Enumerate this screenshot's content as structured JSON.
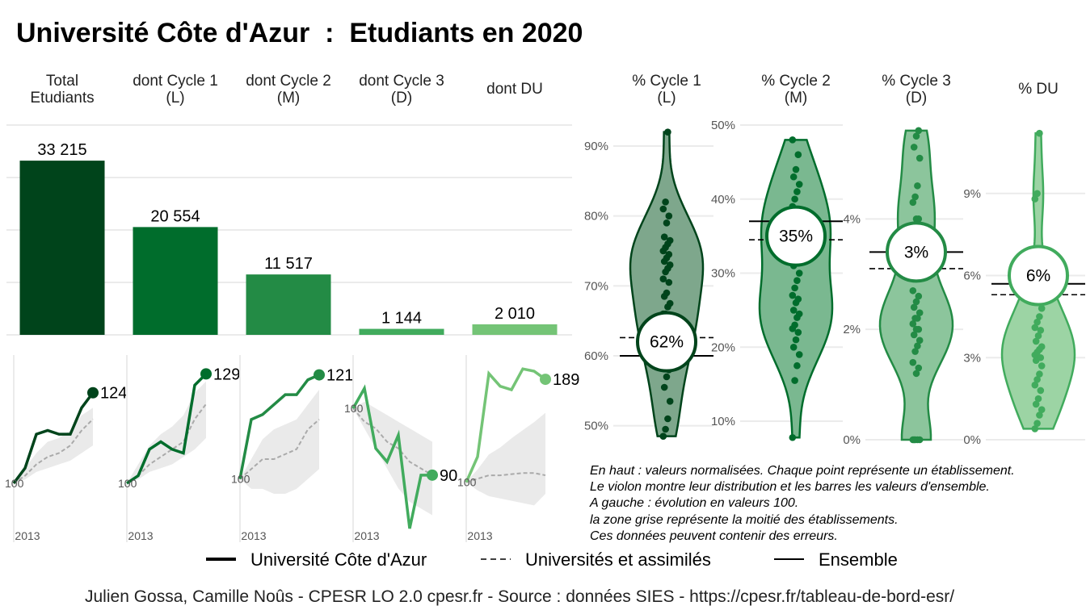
{
  "title": "Université Côte d'Azur  :  Etudiants en 2020",
  "colors": {
    "c_total": "#00441b",
    "c_cycle1": "#006d2c",
    "c_cycle2": "#238b45",
    "c_cycle3": "#41ab5d",
    "c_du": "#74c476",
    "grid": "#ebebeb",
    "ribbon": "#d9d9d9"
  },
  "chart_data": [
    {
      "type": "bar",
      "categories": [
        [
          "Total",
          "Etudiants"
        ],
        [
          "dont Cycle 1",
          "(L)"
        ],
        [
          "dont Cycle 2",
          "(M)"
        ],
        [
          "dont Cycle 3",
          "(D)"
        ],
        [
          "dont DU"
        ]
      ],
      "values": [
        33215,
        20554,
        11517,
        1144,
        2010
      ],
      "value_labels": [
        "33 215",
        "20 554",
        "11 517",
        "1 144",
        "2 010"
      ],
      "ylim": [
        0,
        40000
      ]
    },
    {
      "type": "line",
      "panels": [
        {
          "name": "Total Etudiants",
          "x_tick": "2013",
          "base_label": "100",
          "end_label": "124",
          "x": [
            2013,
            2014,
            2015,
            2016,
            2017,
            2018,
            2019,
            2020
          ],
          "series": [
            {
              "name": "Université Côte d'Azur",
              "values": [
                100,
                104,
                113,
                114,
                113,
                113,
                120,
                124
              ]
            },
            {
              "name": "Universités et assimilés",
              "values": [
                100,
                102,
                105,
                107,
                108,
                110,
                114,
                117
              ]
            }
          ],
          "ribbon": {
            "low": [
              100,
              101,
              103,
              104,
              105,
              106,
              108,
              110
            ],
            "high": [
              100,
              104,
              108,
              111,
              112,
              114,
              118,
              120
            ]
          },
          "ylim": [
            88,
            134
          ]
        },
        {
          "name": "dont Cycle 1 (L)",
          "x_tick": "2013",
          "base_label": "100",
          "end_label": "129",
          "x": [
            2013,
            2014,
            2015,
            2016,
            2017,
            2018,
            2019,
            2020
          ],
          "series": [
            {
              "name": "Université Côte d'Azur",
              "values": [
                100,
                102,
                109,
                111,
                109,
                108,
                126,
                129
              ]
            },
            {
              "name": "Universités et assimilés",
              "values": [
                100,
                102,
                105,
                107,
                109,
                111,
                117,
                121
              ]
            }
          ],
          "ribbon": {
            "low": [
              100,
              101,
              103,
              104,
              105,
              107,
              109,
              112
            ],
            "high": [
              100,
              105,
              110,
              113,
              115,
              118,
              124,
              127
            ]
          },
          "ylim": [
            88,
            134
          ]
        },
        {
          "name": "dont Cycle 2 (M)",
          "x_tick": "2013",
          "base_label": "100",
          "end_label": "121",
          "x": [
            2013,
            2014,
            2015,
            2016,
            2017,
            2018,
            2019,
            2020
          ],
          "series": [
            {
              "name": "Université Côte d'Azur",
              "values": [
                100,
                112,
                113,
                115,
                117,
                117,
                120,
                121
              ]
            },
            {
              "name": "Universités et assimilés",
              "values": [
                100,
                102,
                104,
                104,
                105,
                106,
                110,
                112
              ]
            }
          ],
          "ribbon": {
            "low": [
              100,
              98,
              98,
              97,
              97,
              98,
              100,
              102
            ],
            "high": [
              100,
              104,
              108,
              110,
              111,
              112,
              115,
              118
            ]
          },
          "ylim": [
            90,
            125
          ]
        },
        {
          "name": "dont Cycle 3 (D)",
          "x_tick": "2013",
          "base_label": "100",
          "end_label": "90",
          "x": [
            2013,
            2014,
            2015,
            2016,
            2017,
            2018,
            2019,
            2020
          ],
          "series": [
            {
              "name": "Université Côte d'Azur",
              "values": [
                100,
                103,
                94,
                92,
                96,
                82,
                90,
                90
              ]
            },
            {
              "name": "Universités et assimilés",
              "values": [
                100,
                98,
                97,
                95,
                94,
                92,
                91,
                90
              ]
            }
          ],
          "ribbon": {
            "low": [
              100,
              97,
              94,
              91,
              88,
              86,
              85,
              84
            ],
            "high": [
              100,
              101,
              100,
              99,
              98,
              97,
              96,
              95
            ]
          },
          "ylim": [
            82,
            108
          ]
        },
        {
          "name": "dont DU",
          "x_tick": "2013",
          "base_label": "100",
          "end_label": "189",
          "x": [
            2013,
            2014,
            2015,
            2016,
            2017,
            2018,
            2019,
            2020
          ],
          "series": [
            {
              "name": "Université Côte d'Azur",
              "values": [
                100,
                122,
                194,
                183,
                180,
                198,
                196,
                189
              ]
            },
            {
              "name": "Universités et assimilés",
              "values": [
                100,
                103,
                106,
                106,
                107,
                108,
                108,
                106
              ]
            }
          ],
          "ribbon": {
            "low": [
              100,
              93,
              88,
              86,
              84,
              82,
              80,
              90
            ],
            "high": [
              100,
              111,
              124,
              130,
              138,
              145,
              152,
              160
            ]
          },
          "ylim": [
            60,
            210
          ]
        }
      ]
    },
    {
      "type": "violin",
      "panels": [
        {
          "title": [
            "% Cycle 1",
            "(L)"
          ],
          "color_key": "c_total",
          "ylim": [
            48,
            93
          ],
          "ticks": [
            50,
            60,
            70,
            80,
            90
          ],
          "tick_labels": [
            "50%",
            "60%",
            "70%",
            "80%",
            "90%"
          ],
          "value_label": "62%",
          "value": 62,
          "ensemble": 60,
          "universites": 62.6,
          "points": [
            48.5,
            49.5,
            51,
            53.5,
            55.5,
            57,
            58,
            59,
            60.5,
            61.5,
            62.5,
            63,
            64,
            65,
            66,
            66,
            67,
            67.5,
            68.5,
            69,
            70.5,
            71,
            72,
            72.5,
            73,
            73.5,
            74,
            74.5,
            75,
            75.5,
            76,
            76.5,
            77,
            79,
            80,
            81,
            82,
            92
          ]
        },
        {
          "title": [
            "% Cycle 2",
            "(M)"
          ],
          "color_key": "c_cycle1",
          "ylim": [
            7.5,
            50
          ],
          "ticks": [
            10,
            20,
            30,
            40,
            50
          ],
          "tick_labels": [
            "10%",
            "20%",
            "30%",
            "40%",
            "50%"
          ],
          "value_label": "35%",
          "value": 35,
          "ensemble": 37,
          "universites": 34.5,
          "points": [
            7.8,
            15.5,
            17.5,
            19,
            20,
            21,
            22,
            22.5,
            23,
            24,
            24.5,
            25,
            26,
            26.5,
            27,
            28,
            29,
            30,
            31,
            32,
            33,
            34,
            35,
            35.5,
            36,
            36.5,
            37,
            38,
            39,
            40,
            41,
            42,
            43,
            44,
            46,
            48
          ]
        },
        {
          "title": [
            "% Cycle 3",
            "(D)"
          ],
          "color_key": "c_cycle2",
          "ylim": [
            0,
            5.7
          ],
          "ticks": [
            0,
            2,
            4
          ],
          "tick_labels": [
            "0%",
            "2%",
            "4%"
          ],
          "value_label": "3%",
          "value": 3.4,
          "ensemble": 3.4,
          "universites": 3.1,
          "points": [
            0,
            0,
            0,
            0,
            0,
            1.2,
            1.3,
            1.4,
            1.6,
            1.7,
            1.8,
            1.9,
            2,
            2,
            2.1,
            2.2,
            2.2,
            2.3,
            2.4,
            2.5,
            2.6,
            2.7,
            3,
            3.3,
            3.6,
            3.8,
            4,
            4,
            4.3,
            4.4,
            4.6,
            5.1,
            5.3,
            5.5,
            5.6
          ]
        },
        {
          "title": [
            "% DU"
          ],
          "color_key": "c_cycle3",
          "ylim": [
            0,
            11.5
          ],
          "ticks": [
            0,
            3,
            6,
            9
          ],
          "tick_labels": [
            "0%",
            "3%",
            "6%",
            "9%"
          ],
          "value_label": "6%",
          "value": 6,
          "ensemble": 5.7,
          "universites": 5.3,
          "points": [
            0.4,
            0.6,
            0.9,
            1.1,
            1.3,
            1.5,
            1.8,
            2,
            2.2,
            2.4,
            2.7,
            2.9,
            3,
            3,
            3.1,
            3.2,
            3.3,
            3.4,
            3.6,
            3.8,
            4,
            4.1,
            4.3,
            4.5,
            4.8,
            5.2,
            5.6,
            6,
            8.8,
            9,
            11.2
          ]
        }
      ]
    }
  ],
  "legend": {
    "items": [
      {
        "label": "Université Côte d'Azur",
        "style": "thick"
      },
      {
        "label": "Universités et assimilés",
        "style": "dashed"
      },
      {
        "label": "Ensemble",
        "style": "thin"
      }
    ]
  },
  "notes": [
    "En haut : valeurs normalisées. Chaque point représente un établissement.",
    "Le violon montre leur distribution et les barres les valeurs d'ensemble.",
    "A gauche : évolution en valeurs 100.",
    "la zone grise représente la moitié des établissements.",
    "Ces données peuvent contenir des erreurs."
  ],
  "caption": "Julien Gossa, Camille Noûs - CPESR LO 2.0 cpesr.fr - Source : données SIES - https://cpesr.fr/tableau-de-bord-esr/"
}
